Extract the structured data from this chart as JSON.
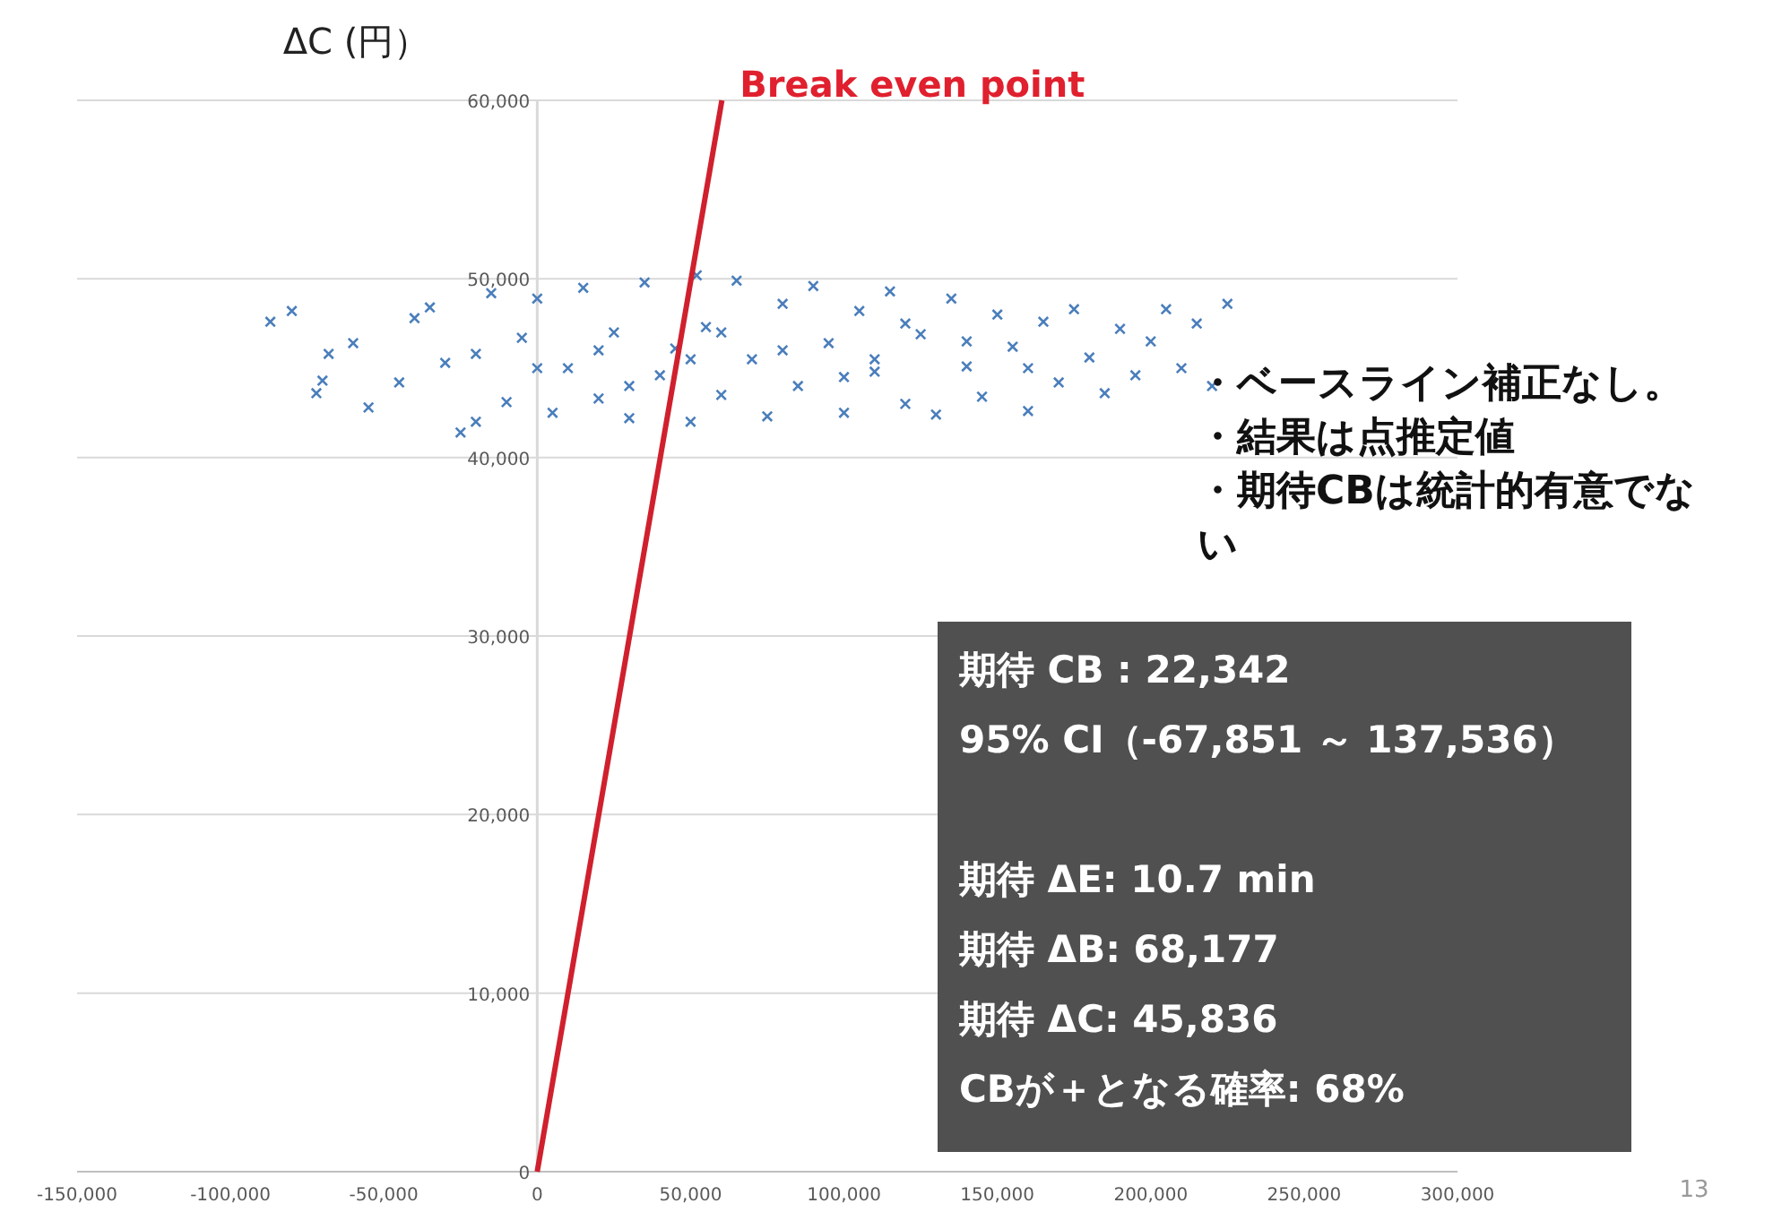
{
  "chart_data": {
    "type": "scatter",
    "ylabel": "ΔC (円）",
    "grid": "y",
    "xlim": [
      -150000,
      300000
    ],
    "ylim": [
      0,
      60000
    ],
    "xticks": [
      {
        "value": -150000,
        "label": "-150,000"
      },
      {
        "value": -100000,
        "label": "-100,000"
      },
      {
        "value": -50000,
        "label": "-50,000"
      },
      {
        "value": 0,
        "label": "0"
      },
      {
        "value": 50000,
        "label": "50,000"
      },
      {
        "value": 100000,
        "label": "100,000"
      },
      {
        "value": 150000,
        "label": "150,000"
      },
      {
        "value": 200000,
        "label": "200,000"
      },
      {
        "value": 250000,
        "label": "250,000"
      },
      {
        "value": 300000,
        "label": "300,000"
      }
    ],
    "yticks": [
      {
        "value": 0,
        "label": "0"
      },
      {
        "value": 10000,
        "label": "10,000"
      },
      {
        "value": 20000,
        "label": "20,000"
      },
      {
        "value": 30000,
        "label": "30,000"
      },
      {
        "value": 40000,
        "label": "40,000"
      },
      {
        "value": 50000,
        "label": "50,000"
      },
      {
        "value": 60000,
        "label": "60,000"
      }
    ],
    "series": [
      {
        "marker": "cross",
        "color": "#4a7ebb",
        "x": [
          -87000,
          -80000,
          -70000,
          -72000,
          -68000,
          -60000,
          -55000,
          -45000,
          -40000,
          -35000,
          -30000,
          -25000,
          -20000,
          -15000,
          -10000,
          -5000,
          0,
          5000,
          10000,
          15000,
          20000,
          25000,
          30000,
          35000,
          40000,
          45000,
          50000,
          52000,
          55000,
          60000,
          65000,
          70000,
          75000,
          80000,
          85000,
          90000,
          95000,
          100000,
          105000,
          110000,
          115000,
          120000,
          125000,
          130000,
          135000,
          140000,
          145000,
          150000,
          155000,
          160000,
          165000,
          170000,
          175000,
          180000,
          185000,
          190000,
          195000,
          200000,
          205000,
          210000,
          215000,
          220000,
          225000,
          20000,
          50000,
          80000,
          110000,
          140000,
          0,
          -20000,
          60000,
          100000,
          160000,
          30000,
          120000
        ],
        "values": [
          47600,
          48200,
          44300,
          43600,
          45800,
          46400,
          42800,
          44200,
          47800,
          48400,
          45300,
          41400,
          42000,
          49200,
          43100,
          46700,
          48900,
          42500,
          45000,
          49500,
          43300,
          47000,
          42200,
          49800,
          44600,
          46100,
          42000,
          50200,
          47300,
          43500,
          49900,
          45500,
          42300,
          48600,
          44000,
          49600,
          46400,
          42500,
          48200,
          44800,
          49300,
          43000,
          46900,
          42400,
          48900,
          45100,
          43400,
          48000,
          46200,
          42600,
          47600,
          44200,
          48300,
          45600,
          43600,
          47200,
          44600,
          46500,
          48300,
          45000,
          47500,
          44000,
          48600,
          46000,
          45500,
          46000,
          45500,
          46500,
          45000,
          45800,
          47000,
          44500,
          45000,
          44000,
          47500
        ]
      },
      {
        "type": "line",
        "color": "#d0202e",
        "x": [
          0,
          60200
        ],
        "values": [
          0,
          60000
        ]
      }
    ],
    "annotations": [
      {
        "text": "Break even point",
        "x": 60200,
        "y": 60000
      },
      "・ベースライン補正なし。",
      "・結果は点推定値",
      "・期待CBは統計的有意でない",
      "期待 CB : 22,342",
      "95% CI（-67,851 ～ 137,536）",
      "期待 ΔE: 10.7 min",
      "期待 ΔB: 68,177",
      "期待 ΔC: 45,836",
      "CBが＋となる確率: 68%",
      "13"
    ]
  }
}
